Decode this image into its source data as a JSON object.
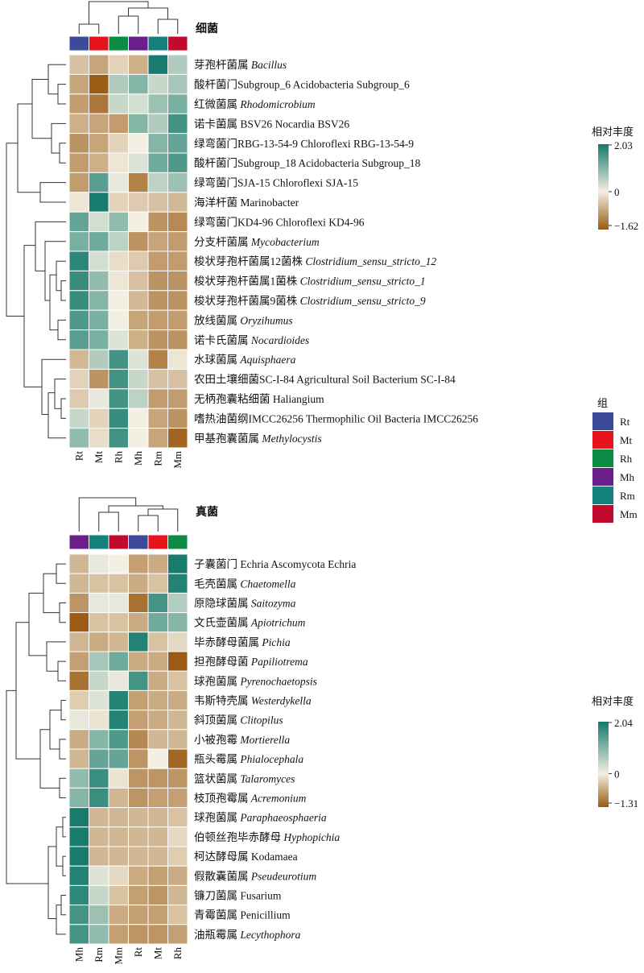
{
  "chart_data": [
    {
      "type": "heatmap",
      "title": "细菌",
      "columns": [
        "Rt",
        "Mt",
        "Rh",
        "Mh",
        "Rm",
        "Mm"
      ],
      "rows": [
        {
          "cn": "芽孢杆菌属",
          "sci": "Bacillus",
          "italic": true,
          "values": [
            -0.5,
            -0.8,
            -0.3,
            -0.7,
            2.0,
            0.6
          ]
        },
        {
          "cn": "酸杆菌门Subgroup_6",
          "sci": "Acidobacteria Subgroup_6",
          "italic": false,
          "values": [
            -0.8,
            -1.6,
            0.6,
            1.0,
            0.4,
            0.7
          ]
        },
        {
          "cn": "红微菌属",
          "sci": "Rhodomicrobium",
          "italic": true,
          "values": [
            -0.9,
            -1.3,
            0.4,
            0.3,
            0.8,
            1.1
          ]
        },
        {
          "cn": "诺卡菌属",
          "sci": "BSV26 Nocardia BSV26",
          "italic": false,
          "values": [
            -0.7,
            -0.8,
            -0.9,
            1.0,
            0.6,
            1.6
          ]
        },
        {
          "cn": "绿弯菌门RBG-13-54-9",
          "sci": "Chloroflexi RBG-13-54-9",
          "italic": false,
          "values": [
            -1.0,
            -0.8,
            -0.3,
            0.0,
            1.0,
            1.3
          ]
        },
        {
          "cn": "酸杆菌门Subgroup_18",
          "sci": "Acidobacteria Subgroup_18",
          "italic": false,
          "values": [
            -0.9,
            -0.7,
            -0.1,
            0.2,
            1.2,
            1.5
          ]
        },
        {
          "cn": "绿弯菌门SJA-15",
          "sci": "Chloroflexi SJA-15",
          "italic": false,
          "values": [
            -0.9,
            1.4,
            0.1,
            -1.2,
            0.5,
            0.8
          ]
        },
        {
          "cn": "海洋杆菌",
          "sci": "Marinobacter",
          "italic": false,
          "values": [
            -0.1,
            2.0,
            -0.3,
            -0.4,
            -0.5,
            -0.6
          ]
        },
        {
          "cn": "绿弯菌门KD4-96",
          "sci": "Chloroflexi KD4-96",
          "italic": false,
          "values": [
            1.3,
            0.3,
            0.9,
            0.0,
            -1.0,
            -1.1
          ]
        },
        {
          "cn": "分支杆菌属",
          "sci": "Mycobacterium",
          "italic": true,
          "values": [
            1.1,
            1.2,
            0.5,
            -1.0,
            -0.8,
            -0.9
          ]
        },
        {
          "cn": "梭状芽孢杆菌属12菌株",
          "sci": "Clostridium_sensu_stricto_12",
          "italic": true,
          "values": [
            1.8,
            0.3,
            -0.2,
            -0.4,
            -0.9,
            -0.9
          ]
        },
        {
          "cn": "梭状芽孢杆菌属1菌株",
          "sci": "Clostridium_sensu_stricto_1",
          "italic": true,
          "values": [
            1.7,
            0.9,
            -0.1,
            -0.5,
            -1.0,
            -1.0
          ]
        },
        {
          "cn": "梭状芽孢杆菌属9菌株",
          "sci": "Clostridium_sensu_stricto_9",
          "italic": true,
          "values": [
            1.7,
            1.0,
            0.0,
            -0.6,
            -1.0,
            -1.0
          ]
        },
        {
          "cn": "放线菌属",
          "sci": "Oryzihumus",
          "italic": true,
          "values": [
            1.5,
            1.1,
            0.0,
            -0.8,
            -0.9,
            -0.9
          ]
        },
        {
          "cn": "诺卡氏菌属",
          "sci": "Nocardioides",
          "italic": true,
          "values": [
            1.4,
            1.1,
            0.2,
            -0.7,
            -1.0,
            -1.0
          ]
        },
        {
          "cn": "水球菌属",
          "sci": "Aquisphaera",
          "italic": true,
          "values": [
            -0.6,
            0.6,
            1.6,
            0.2,
            -1.2,
            -0.1
          ]
        },
        {
          "cn": "农田土壤细菌SC-I-84",
          "sci": "Agricultural Soil Bacterium SC-I-84",
          "italic": false,
          "values": [
            -0.3,
            -1.0,
            1.6,
            0.4,
            -0.5,
            -0.5
          ]
        },
        {
          "cn": "无柄孢囊粘细菌",
          "sci": "Haliangium",
          "italic": false,
          "values": [
            -0.4,
            0.1,
            1.6,
            0.5,
            -0.9,
            -0.9
          ]
        },
        {
          "cn": "嗜热油菌纲IMCC26256",
          "sci": "Thermophilic Oil Bacteria IMCC26256",
          "italic": false,
          "values": [
            0.4,
            -0.3,
            1.7,
            0.0,
            -0.8,
            -1.0
          ]
        },
        {
          "cn": "甲基孢囊菌属",
          "sci": "Methylocystis",
          "italic": true,
          "values": [
            0.9,
            -0.2,
            1.6,
            0.0,
            -0.8,
            -1.5
          ]
        }
      ],
      "legend_title": "相对丰度",
      "legend_max": "2.03",
      "legend_mid": "0",
      "legend_min": "−1.62",
      "vmax": 2.03,
      "vmin": -1.62
    },
    {
      "type": "heatmap",
      "title": "真菌",
      "columns": [
        "Mh",
        "Rm",
        "Mm",
        "Rt",
        "Mt",
        "Rh"
      ],
      "rows": [
        {
          "cn": "子囊菌门",
          "sci": "Echria Ascomycota Echria",
          "italic": false,
          "values": [
            -0.5,
            0.1,
            0.0,
            -0.7,
            -0.6,
            2.0
          ]
        },
        {
          "cn": "毛壳菌属",
          "sci": "Chaetomella",
          "italic": true,
          "values": [
            -0.5,
            -0.4,
            -0.4,
            -0.6,
            -0.4,
            1.9
          ]
        },
        {
          "cn": "原隐球菌属",
          "sci": "Saitozyma",
          "italic": true,
          "values": [
            -0.8,
            0.1,
            0.1,
            -1.1,
            1.6,
            0.6
          ]
        },
        {
          "cn": "文氏壶菌属",
          "sci": "Apiotrichum",
          "italic": true,
          "values": [
            -1.3,
            -0.4,
            -0.4,
            -0.6,
            1.2,
            1.0
          ]
        },
        {
          "cn": "毕赤酵母菌属",
          "sci": "Pichia",
          "italic": true,
          "values": [
            -0.5,
            -0.6,
            -0.5,
            1.9,
            -0.4,
            -0.2
          ]
        },
        {
          "cn": "担孢酵母菌",
          "sci": "Papiliotrema",
          "italic": true,
          "values": [
            -0.7,
            0.7,
            1.2,
            -0.6,
            -0.6,
            -1.3
          ]
        },
        {
          "cn": "球孢菌属",
          "sci": "Pyrenochaetopsis",
          "italic": true,
          "values": [
            -1.1,
            0.4,
            0.1,
            1.6,
            -0.6,
            -0.4
          ]
        },
        {
          "cn": "韦斯特壳属",
          "sci": "Westerdykella",
          "italic": true,
          "values": [
            -0.3,
            0.2,
            1.9,
            -0.7,
            -0.6,
            -0.6
          ]
        },
        {
          "cn": "斜顶菌属",
          "sci": "Clitopilus",
          "italic": true,
          "values": [
            0.1,
            -0.1,
            1.9,
            -0.7,
            -0.6,
            -0.5
          ]
        },
        {
          "cn": "小被孢霉",
          "sci": "Mortierella",
          "italic": true,
          "values": [
            -0.6,
            1.0,
            1.5,
            -0.9,
            -0.5,
            -0.5
          ]
        },
        {
          "cn": "瓶头霉属",
          "sci": "Phialocephala",
          "italic": true,
          "values": [
            -0.5,
            1.3,
            1.3,
            -0.8,
            0.0,
            -1.2
          ]
        },
        {
          "cn": "篮状菌属",
          "sci": "Talaromyces",
          "italic": true,
          "values": [
            0.9,
            1.7,
            -0.1,
            -0.8,
            -0.8,
            -0.8
          ]
        },
        {
          "cn": "枝顶孢霉属",
          "sci": "Acremonium",
          "italic": true,
          "values": [
            1.0,
            1.7,
            -0.5,
            -0.8,
            -0.7,
            -0.7
          ]
        },
        {
          "cn": "球孢菌属",
          "sci": "Paraphaeosphaeria",
          "italic": true,
          "values": [
            2.0,
            -0.5,
            -0.5,
            -0.5,
            -0.5,
            -0.4
          ]
        },
        {
          "cn": "伯顿丝孢毕赤酵母",
          "sci": "Hyphopichia",
          "italic": true,
          "values": [
            2.0,
            -0.5,
            -0.5,
            -0.5,
            -0.5,
            -0.2
          ]
        },
        {
          "cn": "柯达酵母属",
          "sci": "Kodamaea",
          "italic": false,
          "values": [
            2.0,
            -0.5,
            -0.5,
            -0.5,
            -0.5,
            -0.3
          ]
        },
        {
          "cn": "假散囊菌属",
          "sci": "Pseudeurotium",
          "italic": true,
          "values": [
            1.9,
            0.2,
            -0.2,
            -0.6,
            -0.7,
            -0.6
          ]
        },
        {
          "cn": "镰刀菌属",
          "sci": "Fusarium",
          "italic": false,
          "values": [
            1.8,
            0.4,
            -0.4,
            -0.7,
            -0.8,
            -0.5
          ]
        },
        {
          "cn": "青霉菌属",
          "sci": "Penicillium",
          "italic": false,
          "values": [
            1.6,
            0.8,
            -0.6,
            -0.7,
            -0.7,
            -0.4
          ]
        },
        {
          "cn": "油瓶霉属",
          "sci": "Lecythophora",
          "italic": true,
          "values": [
            1.6,
            0.9,
            -0.7,
            -0.8,
            -0.8,
            -0.7
          ]
        }
      ],
      "legend_title": "相对丰度",
      "legend_max": "2.04",
      "legend_mid": "0",
      "legend_min": "−1.31",
      "vmax": 2.04,
      "vmin": -1.31
    }
  ],
  "group_legend": {
    "title": "组",
    "items": [
      {
        "label": "Rt",
        "color": "#3B4A9A"
      },
      {
        "label": "Mt",
        "color": "#E8141B"
      },
      {
        "label": "Rh",
        "color": "#0C8B45"
      },
      {
        "label": "Mh",
        "color": "#6B1F8A"
      },
      {
        "label": "Rm",
        "color": "#15817D"
      },
      {
        "label": "Mm",
        "color": "#C00A2E"
      }
    ]
  },
  "colors": {
    "high": "#147A6B",
    "mid": "#F3EFE2",
    "low": "#9A5A12"
  }
}
